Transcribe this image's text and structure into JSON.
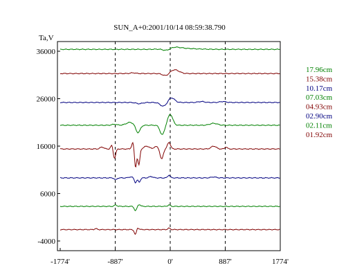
{
  "chart_data": {
    "type": "line",
    "title": "SUN_A+0:2001/10/14 08:59:38.790",
    "ylabel": "Ta,V",
    "xlim": [
      -1774,
      1774
    ],
    "ylim": [
      -6000,
      40000
    ],
    "yticks": [
      {
        "value": -4000,
        "label": "-4000"
      },
      {
        "value": 6000,
        "label": "6000"
      },
      {
        "value": 16000,
        "label": "16000"
      },
      {
        "value": 26000,
        "label": "26000"
      },
      {
        "value": 36000,
        "label": "36000"
      }
    ],
    "xticks": [
      {
        "value": -1774,
        "label": "-1774'"
      },
      {
        "value": -887,
        "label": "-887'"
      },
      {
        "value": 0,
        "label": "0'"
      },
      {
        "value": 887,
        "label": "887'"
      },
      {
        "value": 1774,
        "label": "1774'"
      }
    ],
    "dashed_x": [
      -887,
      0,
      887
    ],
    "grid": false,
    "legend_position": "right",
    "series": [
      {
        "name": "17.96cm",
        "color": "#008000",
        "baseline": 36400,
        "features": [
          [
            -60,
            60,
            -500
          ],
          [
            40,
            120,
            400
          ],
          [
            250,
            200,
            150
          ]
        ]
      },
      {
        "name": "15.38cm",
        "color": "#800000",
        "baseline": 31300,
        "features": [
          [
            -70,
            50,
            -500
          ],
          [
            70,
            70,
            800
          ],
          [
            -600,
            40,
            150
          ]
        ]
      },
      {
        "name": "10.17cm",
        "color": "#000080",
        "baseline": 25200,
        "features": [
          [
            -110,
            50,
            -800
          ],
          [
            20,
            50,
            1000
          ],
          [
            -500,
            50,
            -250
          ],
          [
            500,
            50,
            200
          ],
          [
            850,
            50,
            200
          ]
        ]
      },
      {
        "name": "07.03cm",
        "color": "#008000",
        "baseline": 20400,
        "features": [
          [
            -520,
            35,
            -1600
          ],
          [
            -130,
            35,
            -2000
          ],
          [
            0,
            40,
            2300
          ],
          [
            -650,
            60,
            600
          ],
          [
            700,
            60,
            400
          ],
          [
            -900,
            40,
            200
          ]
        ]
      },
      {
        "name": "04.93cm",
        "color": "#800000",
        "baseline": 15400,
        "features": [
          [
            -560,
            18,
            -4000
          ],
          [
            -505,
            16,
            -3400
          ],
          [
            -140,
            25,
            -2200
          ],
          [
            -900,
            20,
            -2000
          ],
          [
            -940,
            18,
            900
          ],
          [
            -20,
            25,
            1400
          ],
          [
            -380,
            40,
            600
          ],
          [
            -600,
            20,
            1500
          ],
          [
            700,
            40,
            600
          ],
          [
            900,
            20,
            400
          ],
          [
            -1100,
            30,
            400
          ],
          [
            -220,
            40,
            500
          ]
        ]
      },
      {
        "name": "02.90cm",
        "color": "#000080",
        "baseline": 9300,
        "features": [
          [
            -560,
            18,
            -1000
          ],
          [
            -500,
            18,
            -900
          ],
          [
            -880,
            20,
            -400
          ],
          [
            -20,
            20,
            600
          ],
          [
            -310,
            30,
            300
          ],
          [
            -640,
            30,
            200
          ],
          [
            700,
            40,
            200
          ]
        ]
      },
      {
        "name": "02.11cm",
        "color": "#008000",
        "baseline": 3300,
        "features": [
          [
            -560,
            20,
            -900
          ],
          [
            -500,
            20,
            400
          ],
          [
            -880,
            20,
            300
          ],
          [
            -20,
            20,
            300
          ]
        ]
      },
      {
        "name": "01.92cm",
        "color": "#800000",
        "baseline": -1600,
        "features": [
          [
            -560,
            18,
            -1200
          ],
          [
            -530,
            20,
            500
          ],
          [
            -1200,
            20,
            200
          ],
          [
            -20,
            20,
            300
          ]
        ]
      }
    ]
  }
}
